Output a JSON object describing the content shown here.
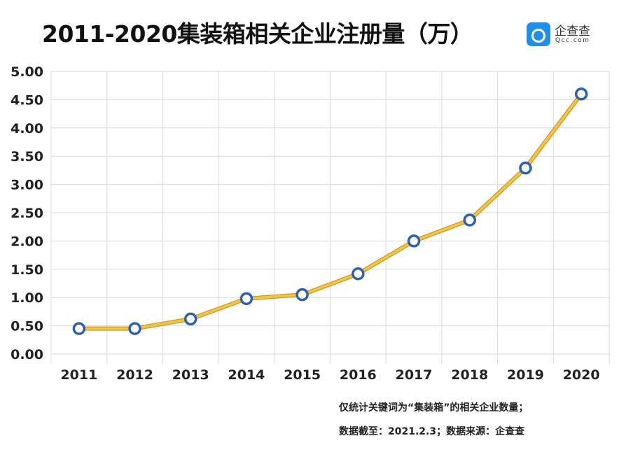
{
  "chart_data": {
    "type": "line",
    "title": "2011-2020集装箱相关企业注册量（万）",
    "categories": [
      "2011",
      "2012",
      "2013",
      "2014",
      "2015",
      "2016",
      "2017",
      "2018",
      "2019",
      "2020"
    ],
    "values": [
      0.45,
      0.45,
      0.62,
      0.98,
      1.05,
      1.42,
      2.0,
      2.37,
      3.29,
      4.6
    ],
    "ylim": [
      0,
      5
    ],
    "yticks": [
      "0.00",
      "0.50",
      "1.00",
      "1.50",
      "2.00",
      "2.50",
      "3.00",
      "3.50",
      "4.00",
      "4.50",
      "5.00"
    ],
    "xlabel": "",
    "ylabel": "",
    "grid": true,
    "colors": {
      "line": "#f5c542",
      "line_edge": "#c99a2e",
      "marker": "#2f5fb3"
    }
  },
  "notes": [
    "仅统计关键词为“集装箱”的相关企业数量；",
    "数据截至：2021.2.3；数据来源：企查查"
  ],
  "logo": {
    "name": "企查查",
    "domain": "Qcc.com"
  }
}
